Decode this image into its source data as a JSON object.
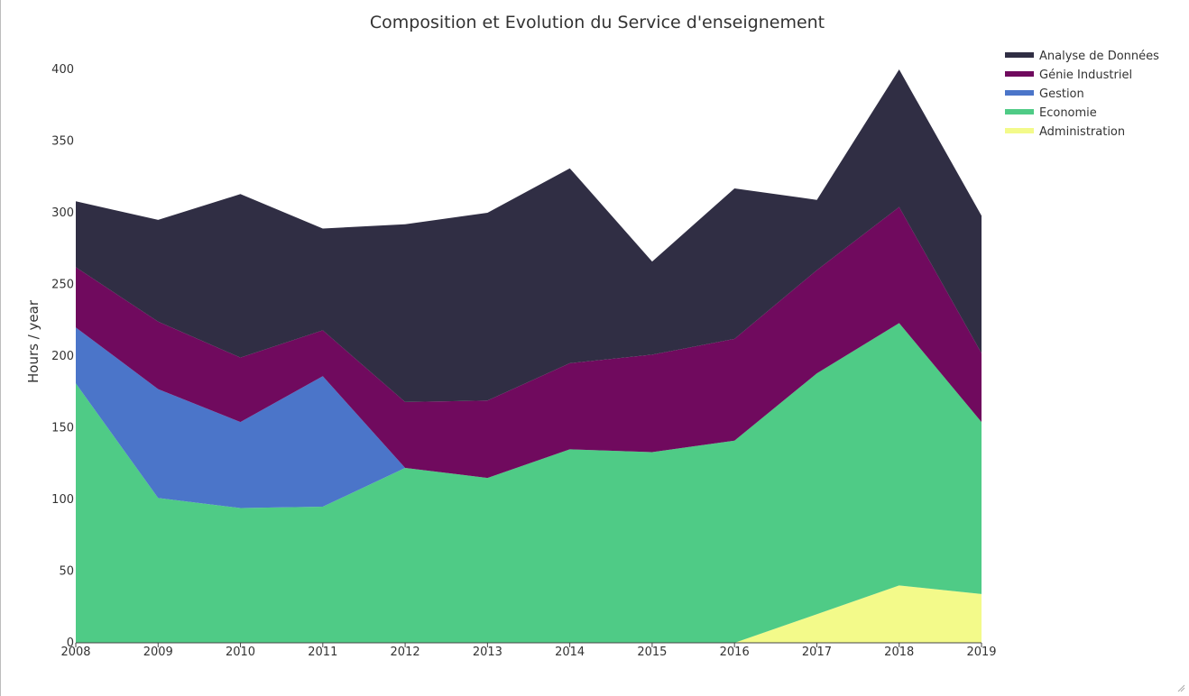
{
  "chart_data": {
    "type": "area",
    "stacked": true,
    "title": "Composition et Evolution du Service d'enseignement",
    "xlabel": "",
    "ylabel": "Hours / year",
    "x": [
      "2008",
      "2009",
      "2010",
      "2011",
      "2012",
      "2013",
      "2014",
      "2015",
      "2016",
      "2017",
      "2018",
      "2019"
    ],
    "xlim": [
      2008,
      2019
    ],
    "ylim": [
      0,
      400
    ],
    "yticks": [
      0,
      50,
      100,
      150,
      200,
      250,
      300,
      350,
      400
    ],
    "grid": false,
    "legend_position": "top-right",
    "series": [
      {
        "name": "Administration",
        "color": "#f3fa8a",
        "values": [
          null,
          null,
          null,
          null,
          null,
          null,
          null,
          null,
          0,
          20,
          40,
          34
        ]
      },
      {
        "name": "Economie",
        "color": "#4fcb86",
        "values": [
          181,
          101,
          94,
          95,
          122,
          115,
          135,
          133,
          141,
          168,
          183,
          120
        ]
      },
      {
        "name": "Gestion",
        "color": "#4b75c9",
        "values": [
          39,
          76,
          60,
          91,
          0,
          0,
          0,
          0,
          0,
          0,
          0,
          0
        ]
      },
      {
        "name": "Génie Industriel",
        "color": "#700a5e",
        "values": [
          42,
          47,
          45,
          32,
          46,
          54,
          60,
          68,
          71,
          72,
          81,
          48
        ]
      },
      {
        "name": "Analyse de Données",
        "color": "#302e44",
        "values": [
          46,
          71,
          114,
          71,
          124,
          131,
          136,
          65,
          105,
          49,
          96,
          96
        ]
      }
    ],
    "legend_order": [
      "Analyse de Données",
      "Génie Industriel",
      "Gestion",
      "Economie",
      "Administration"
    ]
  }
}
